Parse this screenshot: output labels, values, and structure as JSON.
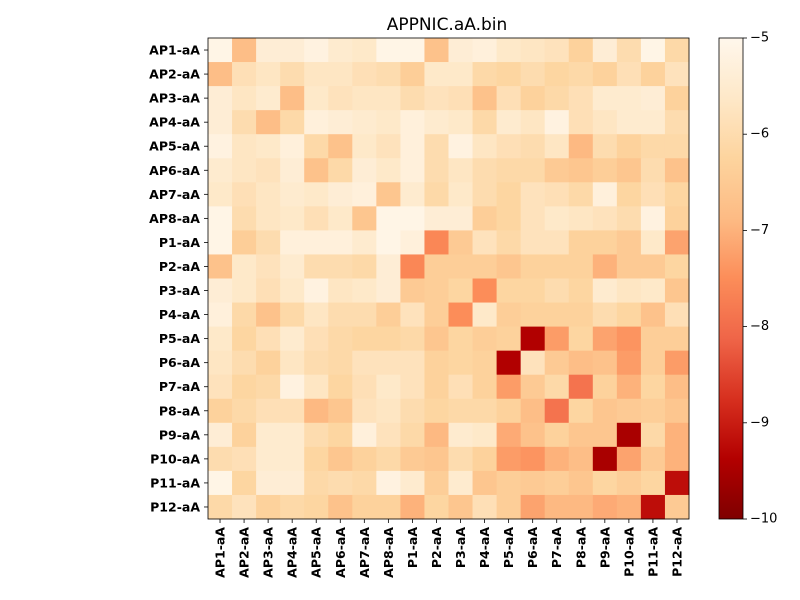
{
  "chart_data": {
    "type": "heatmap",
    "title": "APPNIC.aA.bin",
    "xlabel": "",
    "ylabel": "",
    "labels": [
      "AP1-aA",
      "AP2-aA",
      "AP3-aA",
      "AP4-aA",
      "AP5-aA",
      "AP6-aA",
      "AP7-aA",
      "AP8-aA",
      "P1-aA",
      "P2-aA",
      "P3-aA",
      "P4-aA",
      "P5-aA",
      "P6-aA",
      "P7-aA",
      "P8-aA",
      "P9-aA",
      "P10-aA",
      "P11-aA",
      "P12-aA"
    ],
    "colormap": "OrRd_r",
    "vmin": -10,
    "vmax": -5,
    "colorbar_ticks": [
      -5,
      -6,
      -7,
      -8,
      -9,
      -10
    ],
    "colorbar_tick_labels": [
      "−5",
      "−6",
      "−7",
      "−8",
      "−9",
      "−10"
    ],
    "grid": false,
    "values": [
      [
        -5.1,
        -6.8,
        -5.4,
        -5.4,
        -5.2,
        -5.5,
        -5.6,
        -5.1,
        -5.1,
        -6.7,
        -5.4,
        -5.3,
        -5.6,
        -5.7,
        -5.8,
        -6.3,
        -5.4,
        -6.0,
        -5.1,
        -6.1
      ],
      [
        -6.8,
        -5.9,
        -5.7,
        -6.0,
        -5.7,
        -5.7,
        -5.9,
        -6.0,
        -6.4,
        -5.6,
        -5.6,
        -6.1,
        -6.2,
        -6.0,
        -6.2,
        -6.1,
        -6.3,
        -5.9,
        -6.3,
        -5.8
      ],
      [
        -5.4,
        -5.7,
        -5.5,
        -6.8,
        -5.6,
        -5.8,
        -5.7,
        -5.7,
        -6.0,
        -5.8,
        -5.9,
        -6.7,
        -5.9,
        -6.3,
        -6.1,
        -5.9,
        -5.5,
        -5.5,
        -5.4,
        -6.3
      ],
      [
        -5.4,
        -6.0,
        -6.8,
        -6.1,
        -5.3,
        -5.4,
        -5.5,
        -5.6,
        -5.3,
        -5.5,
        -5.6,
        -6.1,
        -5.5,
        -5.7,
        -5.2,
        -5.9,
        -5.7,
        -5.5,
        -5.5,
        -6.0
      ],
      [
        -5.2,
        -5.7,
        -5.6,
        -5.3,
        -6.1,
        -6.7,
        -5.6,
        -5.8,
        -5.3,
        -6.0,
        -5.2,
        -5.7,
        -5.9,
        -6.0,
        -5.7,
        -6.9,
        -6.0,
        -6.3,
        -6.1,
        -6.1
      ],
      [
        -5.5,
        -5.7,
        -5.8,
        -5.4,
        -6.7,
        -6.1,
        -5.4,
        -5.6,
        -5.3,
        -6.0,
        -5.7,
        -6.0,
        -6.1,
        -6.1,
        -6.5,
        -6.6,
        -6.4,
        -6.6,
        -6.0,
        -6.7
      ],
      [
        -5.6,
        -5.9,
        -5.7,
        -5.5,
        -5.6,
        -5.4,
        -5.3,
        -6.6,
        -5.5,
        -6.1,
        -5.6,
        -6.0,
        -6.2,
        -5.8,
        -5.9,
        -6.1,
        -5.3,
        -6.2,
        -5.9,
        -6.2
      ],
      [
        -5.1,
        -6.0,
        -5.7,
        -5.6,
        -5.9,
        -5.6,
        -6.6,
        -5.1,
        -5.1,
        -5.4,
        -5.4,
        -6.4,
        -6.2,
        -5.8,
        -5.6,
        -5.7,
        -5.8,
        -6.0,
        -5.2,
        -6.3
      ],
      [
        -5.1,
        -6.4,
        -6.0,
        -5.3,
        -5.3,
        -5.3,
        -5.5,
        -5.1,
        -5.3,
        -7.6,
        -6.5,
        -5.8,
        -6.1,
        -5.8,
        -5.8,
        -6.3,
        -6.3,
        -6.5,
        -5.6,
        -7.2
      ],
      [
        -6.7,
        -5.6,
        -5.8,
        -5.5,
        -6.0,
        -6.0,
        -6.1,
        -5.4,
        -7.6,
        -6.4,
        -6.4,
        -6.4,
        -6.6,
        -6.3,
        -6.3,
        -6.3,
        -7.0,
        -6.5,
        -6.5,
        -6.2
      ],
      [
        -5.4,
        -5.6,
        -5.9,
        -5.6,
        -5.2,
        -5.7,
        -5.6,
        -5.4,
        -6.5,
        -6.4,
        -6.2,
        -7.5,
        -6.2,
        -6.2,
        -6.0,
        -6.2,
        -5.5,
        -5.7,
        -5.6,
        -6.6
      ],
      [
        -5.3,
        -6.1,
        -6.7,
        -6.1,
        -5.7,
        -6.0,
        -6.0,
        -6.4,
        -5.8,
        -6.4,
        -7.5,
        -5.6,
        -6.4,
        -6.3,
        -6.3,
        -6.3,
        -6.0,
        -6.2,
        -6.7,
        -5.9
      ],
      [
        -5.6,
        -6.2,
        -5.9,
        -5.5,
        -5.9,
        -6.1,
        -6.2,
        -6.2,
        -6.1,
        -6.6,
        -6.2,
        -6.4,
        -6.3,
        -9.4,
        -7.3,
        -6.2,
        -7.2,
        -7.4,
        -6.4,
        -6.4
      ],
      [
        -5.7,
        -6.0,
        -6.3,
        -5.7,
        -6.0,
        -6.1,
        -5.8,
        -5.8,
        -5.8,
        -6.3,
        -6.2,
        -6.3,
        -9.4,
        -5.8,
        -6.5,
        -6.8,
        -6.7,
        -7.3,
        -6.4,
        -7.3
      ],
      [
        -5.8,
        -6.2,
        -6.1,
        -5.2,
        -5.7,
        -6.2,
        -5.9,
        -5.6,
        -5.8,
        -6.3,
        -5.9,
        -6.3,
        -7.3,
        -6.5,
        -6.1,
        -7.9,
        -6.3,
        -7.0,
        -6.2,
        -6.8
      ],
      [
        -6.3,
        -6.1,
        -5.9,
        -5.9,
        -6.9,
        -6.6,
        -5.8,
        -5.7,
        -6.0,
        -6.2,
        -6.1,
        -6.1,
        -6.3,
        -6.8,
        -7.9,
        -6.2,
        -6.6,
        -6.5,
        -6.4,
        -6.6
      ],
      [
        -5.4,
        -6.3,
        -5.5,
        -5.5,
        -6.0,
        -6.2,
        -5.3,
        -5.8,
        -6.1,
        -6.9,
        -5.5,
        -5.6,
        -7.1,
        -6.7,
        -6.3,
        -6.6,
        -6.6,
        -9.5,
        -6.1,
        -7.0
      ],
      [
        -6.0,
        -5.9,
        -5.5,
        -5.5,
        -6.2,
        -6.6,
        -6.3,
        -6.1,
        -6.5,
        -6.6,
        -6.0,
        -6.3,
        -7.3,
        -7.4,
        -7.0,
        -6.8,
        -9.5,
        -7.2,
        -6.5,
        -7.0
      ],
      [
        -5.1,
        -6.2,
        -5.4,
        -5.4,
        -6.1,
        -6.0,
        -6.1,
        -5.2,
        -5.5,
        -6.4,
        -5.5,
        -6.6,
        -6.4,
        -6.5,
        -6.4,
        -6.6,
        -6.2,
        -6.4,
        -6.2,
        -9.2
      ],
      [
        -6.1,
        -5.8,
        -6.3,
        -6.1,
        -6.2,
        -6.7,
        -6.3,
        -6.3,
        -7.0,
        -6.2,
        -6.6,
        -5.9,
        -6.4,
        -7.2,
        -6.9,
        -6.9,
        -7.1,
        -7.0,
        -9.2,
        -6.5
      ]
    ]
  }
}
